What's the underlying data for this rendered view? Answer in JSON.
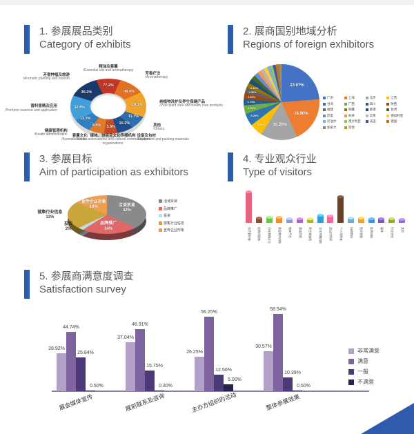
{
  "page": {
    "background": "#ffffff",
    "accent_blue": "#2b5cad",
    "title_color": "#57585a"
  },
  "sections": [
    {
      "title_zh": "1. 参展展品类别",
      "title_en": "Category of exhibits"
    },
    {
      "title_zh": "2. 展商国别地域分析",
      "title_en": "Regions of foreign exhibitors"
    },
    {
      "title_zh": "3. 参展目标",
      "title_en": "Aim of participation as exhibitors"
    },
    {
      "title_zh": "4. 专业观众行业",
      "title_en": "Type of visitors"
    },
    {
      "title_zh": "5. 参展商满意度调查",
      "title_en": "Satisfaction survey"
    }
  ],
  "chart_data": [
    {
      "type": "pie",
      "variant": "3d-donut",
      "title": "Category of exhibits",
      "note": "multi-select percentages shown on ring; arc = visual wedge size in degrees",
      "segments": [
        {
          "label_zh": "精油及香薰",
          "label_en": "/Essential oils and aromatherapy",
          "value": "77.2%",
          "arc": 50,
          "color": "#c23527"
        },
        {
          "label_zh": "芳香疗法",
          "label_en": "/Aromatherapy",
          "value": "48.4%",
          "arc": 42,
          "color": "#e2711f"
        },
        {
          "label_zh": "纯植物洗护及养生保健产品",
          "label_en": "/Pure plant care and health care products",
          "value": "28.1%",
          "arc": 40,
          "color": "#efa32a"
        },
        {
          "label_zh": "其他",
          "label_en": "/Others",
          "value": "11.7%",
          "arc": 24,
          "color": "#2e6fb0"
        },
        {
          "label_zh": "设备及包材",
          "label_en": "/Equipment and packing materials",
          "value": "10.2%",
          "arc": 30,
          "color": "#1f4e8c"
        },
        {
          "label_zh": "媒体、协会及文化传播机构",
          "label_en": "/Media, associations and cultural communication organizations",
          "value": "3.9%",
          "arc": 28,
          "color": "#cc4a21"
        },
        {
          "label_zh": "香薰文化",
          "label_en": "/Aromatic culture",
          "value": "9.4%",
          "arc": 30,
          "color": "#e07b28"
        },
        {
          "label_zh": "健康管理机构",
          "label_en": "/Health administration",
          "value": "13.3%",
          "arc": 28,
          "color": "#2f7fc1"
        },
        {
          "label_zh": "香料香精及应用",
          "label_en": "/Perfume essence and application",
          "value": "32.8%",
          "arc": 40,
          "color": "#41a0d9"
        },
        {
          "label_zh": "芳香种植及旅游",
          "label_en": "/Aromatic planting and tourism",
          "value": "35.2%",
          "arc": 48,
          "color": "#1b3a6b"
        }
      ]
    },
    {
      "type": "pie",
      "title": "Regions of foreign exhibitors",
      "legend_columns": 4,
      "label_min_value": 2.0,
      "slices": [
        {
          "label": "广东",
          "value": 23.07
        },
        {
          "label": "上海",
          "value": 18.9
        },
        {
          "label": "北京",
          "value": 15.2
        },
        {
          "label": "江苏",
          "value": 5.5
        },
        {
          "label": "台湾",
          "value": 5.2
        },
        {
          "label": "广西",
          "value": 3.5
        },
        {
          "label": "四川",
          "value": 2.72
        },
        {
          "label": "陕西",
          "value": 2.5
        },
        {
          "label": "福建",
          "value": 2.3
        },
        {
          "label": "新疆",
          "value": 2.1
        },
        {
          "label": "香港",
          "value": 1.9
        },
        {
          "label": "甘肃",
          "value": 1.8
        },
        {
          "label": "印度",
          "value": 1.7
        },
        {
          "label": "天津",
          "value": 1.6
        },
        {
          "label": "云南",
          "value": 1.5
        },
        {
          "label": "保加利亚",
          "value": 1.4
        },
        {
          "label": "尼泊尔",
          "value": 1.3
        },
        {
          "label": "澳大利亚",
          "value": 1.2
        },
        {
          "label": "法国",
          "value": 1.1
        },
        {
          "label": "德国",
          "value": 1.0
        },
        {
          "label": "加拿大",
          "value": 0.9
        },
        {
          "label": "其他",
          "value": 0.61
        }
      ],
      "palette": [
        "#4472c4",
        "#ed7d31",
        "#a5a5a5",
        "#ffc000",
        "#2e75b6",
        "#70ad47",
        "#255e91",
        "#9e480e",
        "#636363",
        "#997300",
        "#1f4e79",
        "#43682b",
        "#698ed0",
        "#f1975a",
        "#b7b7b7",
        "#ffcd33",
        "#7cafdd",
        "#8cc168",
        "#335aa1",
        "#cb6a17",
        "#848484",
        "#c09c00"
      ]
    },
    {
      "type": "pie",
      "variant": "3d",
      "title": "Aim of participation as exhibitors",
      "slices": [
        {
          "label": "洽谈贸易",
          "value": 32,
          "color": "#8a8a8a",
          "label_pos": "inside"
        },
        {
          "label": "品牌推广",
          "value": 34,
          "color": "#e26868",
          "label_pos": "inside"
        },
        {
          "label": "投资",
          "value": 2,
          "color": "#bcdce8",
          "label_pos": "outside"
        },
        {
          "label": "搜集行业信息",
          "value": 13,
          "color": "#c9a53b",
          "label_pos": "outside"
        },
        {
          "label": "宣传企业形象",
          "value": 19,
          "color": "#ef9f4e",
          "label_pos": "inside"
        }
      ]
    },
    {
      "type": "bar",
      "variant": "cylinder",
      "title": "Type of visitors",
      "note": "values estimated from bar heights; category labels are tiny rotated text in the source and transcribed best-effort",
      "categories": [
        "芳疗爱好者",
        "经销代理商",
        "日化香精企业",
        "美容美体机构",
        "电商平台",
        "酒店民宿",
        "养生瑜伽馆",
        "文化传播机构",
        "进出口贸易",
        "个人消费者",
        "科研院校",
        "医疗保健",
        "投资机构",
        "媒体",
        "行业协会",
        "其他"
      ],
      "values": [
        45,
        7,
        8,
        8,
        6,
        6,
        6,
        11,
        10,
        38,
        7,
        7,
        6,
        6,
        6,
        5
      ],
      "colors": [
        "#e8647e",
        "#8c4a3a",
        "#6fbf53",
        "#ef8c3a",
        "#8f96d9",
        "#a468c9",
        "#aeb23a",
        "#3a9ad9",
        "#ef6a8e",
        "#6b4226",
        "#7da6c9",
        "#efa03a",
        "#4a8fd9",
        "#7b5eaa",
        "#9aa23a",
        "#8a6bc9"
      ]
    },
    {
      "type": "bar",
      "variant": "grouped",
      "title": "Satisfaction survey",
      "categories": [
        "展会媒体宣传",
        "展前联系及咨询",
        "主办方组织的活动",
        "整体参展效果"
      ],
      "series": [
        {
          "name": "非常满意",
          "color": "#b3a0c9",
          "values": [
            28.92,
            37.04,
            26.25,
            30.57
          ]
        },
        {
          "name": "满意",
          "color": "#7e639f",
          "values": [
            44.74,
            46.91,
            56.25,
            58.54
          ]
        },
        {
          "name": "一般",
          "color": "#4c3a78",
          "values": [
            25.84,
            15.75,
            12.5,
            10.39
          ]
        },
        {
          "name": "不满意",
          "color": "#2b2150",
          "values": [
            0.5,
            0.3,
            5.0,
            0.5
          ]
        }
      ],
      "ylim": [
        0,
        60
      ],
      "axis_color": "#8b7ab0",
      "legend_position": "right"
    }
  ]
}
